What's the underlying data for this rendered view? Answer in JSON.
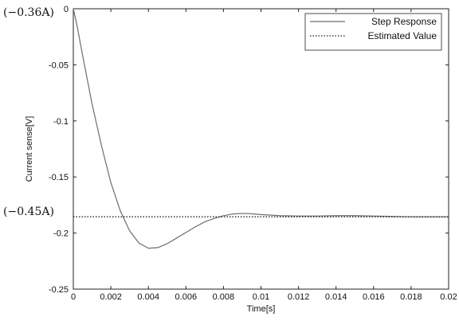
{
  "chart_data": {
    "type": "line",
    "xlabel": "Time[s]",
    "ylabel": "Current sense[V]",
    "xlim": [
      0,
      0.02
    ],
    "ylim": [
      -0.25,
      0
    ],
    "x_ticks": [
      "0",
      "0.002",
      "0.004",
      "0.006",
      "0.008",
      "0.01",
      "0.012",
      "0.014",
      "0.016",
      "0.018",
      "0.02"
    ],
    "y_ticks": [
      "0",
      "-0.05",
      "-0.1",
      "-0.15",
      "-0.2",
      "-0.25"
    ],
    "grid": false,
    "legend_position": "top-right",
    "annotations": [
      {
        "text": "(−0.36A)",
        "y": 0
      },
      {
        "text": "(−0.45A)",
        "y": -0.1855
      }
    ],
    "series": [
      {
        "name": "Step Response",
        "color": "#6e6e6e",
        "dash": "solid",
        "x": [
          0,
          0.0002,
          0.0005,
          0.001,
          0.0015,
          0.002,
          0.0025,
          0.003,
          0.0035,
          0.004,
          0.0045,
          0.005,
          0.0055,
          0.006,
          0.0065,
          0.007,
          0.0075,
          0.008,
          0.0085,
          0.009,
          0.0095,
          0.01,
          0.011,
          0.012,
          0.013,
          0.014,
          0.015,
          0.016,
          0.017,
          0.018,
          0.019,
          0.02
        ],
        "values": [
          0,
          -0.015,
          -0.042,
          -0.085,
          -0.122,
          -0.155,
          -0.18,
          -0.198,
          -0.209,
          -0.2135,
          -0.213,
          -0.2095,
          -0.2045,
          -0.1995,
          -0.1945,
          -0.19,
          -0.187,
          -0.1845,
          -0.183,
          -0.1825,
          -0.1828,
          -0.1835,
          -0.1845,
          -0.1848,
          -0.1848,
          -0.1845,
          -0.1845,
          -0.1848,
          -0.1852,
          -0.1855,
          -0.1855,
          -0.1855
        ]
      },
      {
        "name": "Estimated Value",
        "color": "#222222",
        "dash": "dotted",
        "x": [
          0,
          0.02
        ],
        "values": [
          -0.1855,
          -0.1855
        ]
      }
    ]
  }
}
